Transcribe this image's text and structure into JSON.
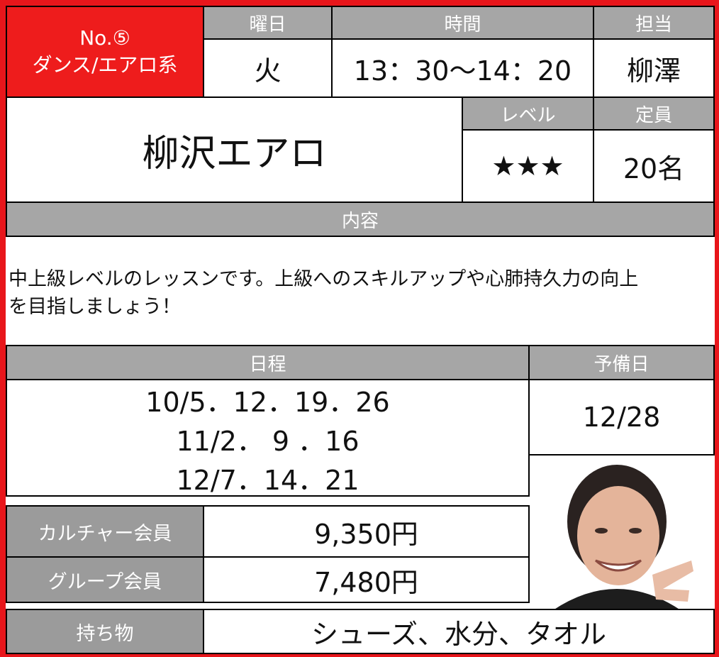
{
  "class_info": {
    "number": "No.⑤",
    "category": "ダンス/エアロ系",
    "day_header": "曜日",
    "time_header": "時間",
    "instructor_header": "担当",
    "day": "火",
    "time": "13：30～14：20",
    "instructor": "柳澤"
  },
  "title": "柳沢エアロ",
  "level_header": "レベル",
  "level": "★★★",
  "capacity_header": "定員",
  "capacity": "20名",
  "content_header": "内容",
  "content_lines": [
    "中上級レベルのレッスンです。上級へのスキルアップや心肺持久力の向上",
    "を目指しましょう！"
  ],
  "schedule_header": "日程",
  "schedule_lines": [
    "10/5．12．19．26",
    "11/2． 9 ．16",
    "12/7．14．21"
  ],
  "reserve_header": "予備日",
  "reserve_date": "12/28",
  "fees": [
    {
      "label": "カルチャー会員",
      "price": "9,350円"
    },
    {
      "label": "グループ会員",
      "price": "7,480円"
    }
  ],
  "items_label": "持ち物",
  "items": "シューズ、水分、タオル"
}
